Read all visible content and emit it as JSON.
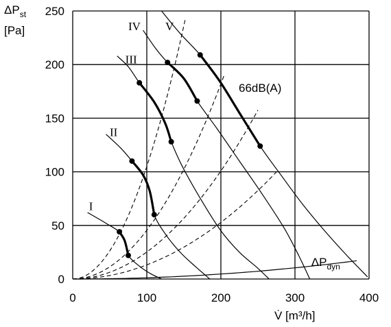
{
  "chart_data": {
    "type": "line",
    "xlabel_main": "V̇ [m³/h]",
    "ylabel_main": "ΔP",
    "ylabel_sub": "st",
    "ylabel_unit": "[Pa]",
    "xlim": [
      0,
      400
    ],
    "ylim": [
      0,
      250
    ],
    "x_ticks": [
      "0",
      "100",
      "200",
      "300",
      "400"
    ],
    "y_ticks": [
      "0",
      "50",
      "100",
      "150",
      "200",
      "250"
    ],
    "x_tick_values": [
      0,
      100,
      200,
      300,
      400
    ],
    "y_tick_values": [
      0,
      50,
      100,
      150,
      200,
      250
    ],
    "grid": true,
    "annotation_db": "66dB(A)",
    "annotation_dyn_main": "ΔP",
    "annotation_dyn_sub": "dyn",
    "series": [
      {
        "name": "I",
        "points": [
          [
            20,
            62
          ],
          [
            45,
            52
          ],
          [
            63,
            44
          ],
          [
            70,
            36
          ],
          [
            75,
            22
          ],
          [
            90,
            12
          ],
          [
            105,
            5
          ],
          [
            120,
            0
          ]
        ],
        "op_range": [
          [
            63,
            44
          ],
          [
            70,
            36
          ],
          [
            75,
            22
          ]
        ],
        "label_at": [
          22,
          68
        ]
      },
      {
        "name": "II",
        "points": [
          [
            45,
            135
          ],
          [
            65,
            122
          ],
          [
            80,
            110
          ],
          [
            95,
            97
          ],
          [
            104,
            82
          ],
          [
            110,
            60
          ],
          [
            125,
            42
          ],
          [
            145,
            25
          ],
          [
            165,
            12
          ],
          [
            185,
            0
          ]
        ],
        "op_range": [
          [
            80,
            110
          ],
          [
            95,
            97
          ],
          [
            104,
            82
          ],
          [
            110,
            60
          ]
        ],
        "label_at": [
          50,
          137
        ]
      },
      {
        "name": "III",
        "points": [
          [
            60,
            208
          ],
          [
            75,
            198
          ],
          [
            90,
            183
          ],
          [
            110,
            165
          ],
          [
            125,
            145
          ],
          [
            133,
            128
          ],
          [
            148,
            105
          ],
          [
            175,
            72
          ],
          [
            200,
            45
          ],
          [
            225,
            25
          ],
          [
            250,
            10
          ],
          [
            265,
            0
          ]
        ],
        "op_range": [
          [
            90,
            183
          ],
          [
            110,
            165
          ],
          [
            125,
            145
          ],
          [
            133,
            128
          ]
        ],
        "label_at": [
          71,
          205
        ]
      },
      {
        "name": "IV",
        "points": [
          [
            95,
            232
          ],
          [
            112,
            215
          ],
          [
            128,
            202
          ],
          [
            150,
            187
          ],
          [
            168,
            166
          ],
          [
            195,
            140
          ],
          [
            225,
            110
          ],
          [
            255,
            80
          ],
          [
            285,
            48
          ],
          [
            305,
            22
          ],
          [
            320,
            0
          ]
        ],
        "op_range": [
          [
            128,
            202
          ],
          [
            150,
            187
          ],
          [
            168,
            166
          ]
        ],
        "label_at": [
          75,
          236
        ]
      },
      {
        "name": "V",
        "points": [
          [
            120,
            250
          ],
          [
            145,
            229
          ],
          [
            172,
            209
          ],
          [
            198,
            185
          ],
          [
            225,
            155
          ],
          [
            253,
            124
          ],
          [
            280,
            98
          ],
          [
            310,
            70
          ],
          [
            340,
            45
          ],
          [
            370,
            22
          ],
          [
            398,
            2
          ]
        ],
        "op_range": [
          [
            172,
            209
          ],
          [
            198,
            185
          ],
          [
            225,
            155
          ],
          [
            253,
            124
          ]
        ],
        "label_at": [
          125,
          236
        ]
      }
    ],
    "system_curves": [
      {
        "a": 0.0105,
        "x_end": 152
      },
      {
        "a": 0.00455,
        "x_end": 205
      },
      {
        "a": 0.00252,
        "x_end": 250
      },
      {
        "a": 0.00132,
        "x_end": 287
      }
    ],
    "dyn_pressure_curve": {
      "a": 0.000116,
      "x_end": 400,
      "label_at": [
        322,
        12
      ]
    }
  }
}
